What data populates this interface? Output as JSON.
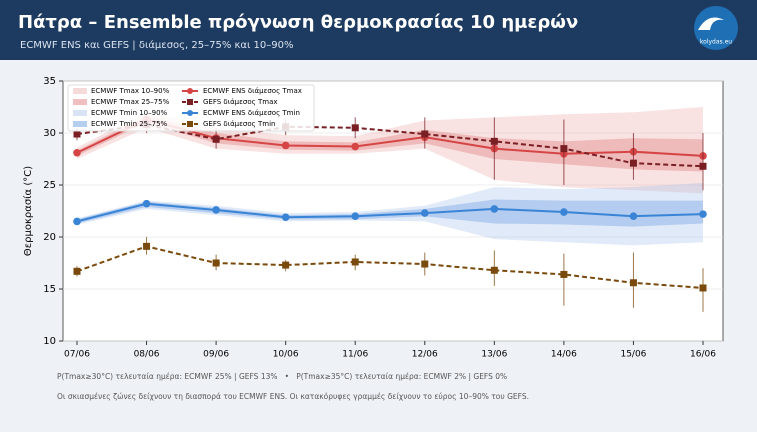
{
  "header": {
    "title": "Πάτρα – Ensemble πρόγνωση θερμοκρασίας 10 ημερών",
    "subtitle": "ECMWF ENS και GEFS | διάμεσος, 25–75% και 10–90%",
    "logo": "kolydas.eu"
  },
  "chart_data": {
    "type": "line",
    "y_label": "Θερμοκρασία (°C)",
    "categories": [
      "07/06",
      "08/06",
      "09/06",
      "10/06",
      "11/06",
      "12/06",
      "13/06",
      "14/06",
      "15/06",
      "16/06"
    ],
    "ylim": [
      10,
      35
    ],
    "yticks": [
      10,
      15,
      20,
      25,
      30,
      35
    ],
    "grid": true,
    "legend": "upper-left",
    "bands": [
      {
        "name": "ECMWF Tmax 10–90%",
        "color": "#e8a0a0",
        "opacity": 0.3,
        "low": [
          27.5,
          30.5,
          28.5,
          28.0,
          28.0,
          28.5,
          25.5,
          24.8,
          24.5,
          24.2
        ],
        "high": [
          28.6,
          32.0,
          30.5,
          29.8,
          29.7,
          31.2,
          31.5,
          31.8,
          32.0,
          32.5
        ]
      },
      {
        "name": "ECMWF Tmax 25–75%",
        "color": "#e07070",
        "opacity": 0.35,
        "low": [
          27.8,
          31.0,
          29.0,
          28.4,
          28.3,
          29.0,
          27.5,
          27.0,
          26.5,
          26.3
        ],
        "high": [
          28.3,
          31.7,
          30.0,
          29.2,
          29.1,
          30.3,
          29.5,
          29.2,
          29.5,
          29.4
        ]
      },
      {
        "name": "ECMWF Tmin 10–90%",
        "color": "#a8c4ec",
        "opacity": 0.35,
        "low": [
          21.2,
          22.7,
          22.1,
          21.5,
          21.6,
          21.5,
          19.8,
          19.5,
          19.2,
          19.5
        ],
        "high": [
          21.8,
          23.5,
          23.0,
          22.3,
          22.4,
          23.0,
          24.8,
          24.6,
          24.8,
          25.2
        ]
      },
      {
        "name": "ECMWF Tmin 25–75%",
        "color": "#6f9fe0",
        "opacity": 0.4,
        "low": [
          21.3,
          22.9,
          22.3,
          21.7,
          21.7,
          22.0,
          21.3,
          21.2,
          21.0,
          21.3
        ],
        "high": [
          21.7,
          23.4,
          22.8,
          22.1,
          22.2,
          22.7,
          23.6,
          23.5,
          23.5,
          23.5
        ]
      }
    ],
    "series": [
      {
        "name": "ECMWF ENS διάμεσος Tmax",
        "color": "#d64545",
        "marker": "circle",
        "dashed": false,
        "values": [
          28.1,
          31.3,
          29.5,
          28.8,
          28.7,
          29.6,
          28.5,
          28.0,
          28.2,
          27.8
        ]
      },
      {
        "name": "GEFS διάμεσος Tmax",
        "color": "#7a1f24",
        "marker": "square",
        "dashed": true,
        "values": [
          29.9,
          30.8,
          29.4,
          30.6,
          30.5,
          29.9,
          29.2,
          28.5,
          27.1,
          26.8
        ],
        "low": [
          29.3,
          30.0,
          28.5,
          29.8,
          29.5,
          28.5,
          25.5,
          25.0,
          25.5,
          24.5
        ],
        "high": [
          30.5,
          31.5,
          30.5,
          31.3,
          31.5,
          31.5,
          31.5,
          31.3,
          30.0,
          30.0
        ]
      },
      {
        "name": "ECMWF ENS διάμεσος Tmin",
        "color": "#3a84d6",
        "marker": "circle",
        "dashed": false,
        "values": [
          21.5,
          23.2,
          22.6,
          21.9,
          22.0,
          22.3,
          22.7,
          22.4,
          22.0,
          22.2
        ]
      },
      {
        "name": "GEFS διάμεσος Tmin",
        "color": "#7a4a0c",
        "marker": "square",
        "dashed": true,
        "values": [
          16.7,
          19.1,
          17.5,
          17.3,
          17.6,
          17.4,
          16.8,
          16.4,
          15.6,
          15.1
        ],
        "low": [
          16.2,
          18.3,
          16.8,
          16.7,
          16.8,
          16.3,
          15.3,
          13.4,
          13.2,
          12.8
        ],
        "high": [
          17.2,
          20.0,
          18.3,
          17.8,
          18.3,
          18.5,
          18.7,
          18.4,
          18.5,
          17.0
        ]
      }
    ]
  },
  "notes": [
    "P(Tmax≥30°C) τελευταία ημέρα: ECMWF 25% | GEFS 13%   •   P(Tmax≥35°C) τελευταία ημέρα: ECMWF 2% | GEFS 0%",
    "Οι σκιασμένες ζώνες δείχνουν τη διασπορά του ECMWF ENS. Οι κατακόρυφες γραμμές δείχνουν το εύρος 10–90% του GEFS."
  ]
}
